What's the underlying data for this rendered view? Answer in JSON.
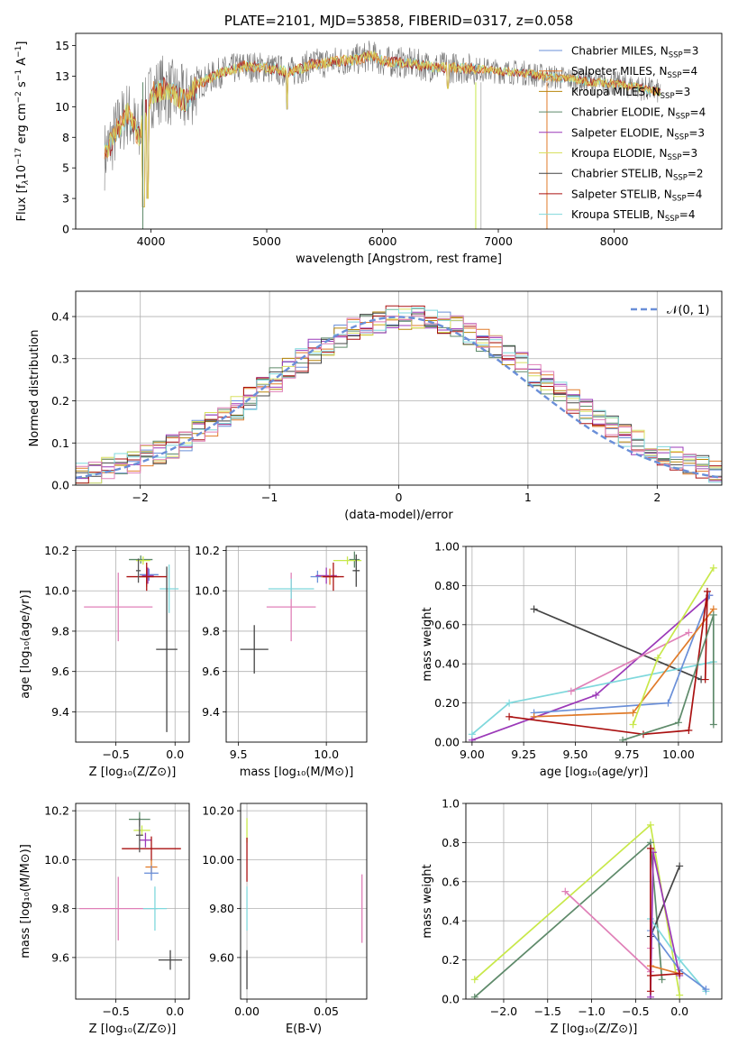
{
  "colors": [
    "#6a8fd8",
    "#e07b2a",
    "#b8860b",
    "#5e8a6a",
    "#9b39b8",
    "#d8e060",
    "#444444",
    "#aa1111",
    "#7fd8dc"
  ],
  "extra_colors": {
    "pink": "#e080b8",
    "lime": "#c8e84a",
    "gray": "#555555"
  },
  "chart_data": [
    {
      "type": "line",
      "title": "PLATE=2101, MJD=53858, FIBERID=0317, z=0.058",
      "xlabel": "wavelength [Angstrom, rest frame]",
      "ylabel_parts": [
        "Flux [f",
        "λ",
        "10",
        "−17",
        " erg cm",
        "−2",
        " s",
        "−1",
        " A",
        "−1",
        "]"
      ],
      "xlim": [
        3350,
        8930
      ],
      "ylim": [
        0,
        16
      ],
      "xticks": [
        4000,
        5000,
        6000,
        7000,
        8000
      ],
      "yticks": [
        0.0,
        2.5,
        5.0,
        7.5,
        10.0,
        12.5,
        15.0
      ],
      "legend_position": "top-right",
      "legend": [
        {
          "text": "Chabrier MILES, N",
          "sub": "SSP",
          "suffix": "=3"
        },
        {
          "text": "Salpeter MILES, N",
          "sub": "SSP",
          "suffix": "=4"
        },
        {
          "text": "Kroupa MILES, N",
          "sub": "SSP",
          "suffix": "=3"
        },
        {
          "text": "Chabrier ELODIE, N",
          "sub": "SSP",
          "suffix": "=4"
        },
        {
          "text": "Salpeter ELODIE, N",
          "sub": "SSP",
          "suffix": "=3"
        },
        {
          "text": "Kroupa ELODIE, N",
          "sub": "SSP",
          "suffix": "=3"
        },
        {
          "text": "Chabrier STELIB, N",
          "sub": "SSP",
          "suffix": "=2"
        },
        {
          "text": "Salpeter STELIB, N",
          "sub": "SSP",
          "suffix": "=4"
        },
        {
          "text": "Kroupa STELIB, N",
          "sub": "SSP",
          "suffix": "=4"
        }
      ],
      "spectrum_shape": [
        [
          3600,
          6.0
        ],
        [
          3700,
          8.0
        ],
        [
          3800,
          9.5
        ],
        [
          3900,
          7.5
        ],
        [
          3950,
          9.5
        ],
        [
          4000,
          11.0
        ],
        [
          4100,
          11.5
        ],
        [
          4300,
          10.5
        ],
        [
          4400,
          11.8
        ],
        [
          4600,
          12.8
        ],
        [
          4800,
          13.3
        ],
        [
          5000,
          13.2
        ],
        [
          5200,
          12.8
        ],
        [
          5400,
          13.5
        ],
        [
          5600,
          13.7
        ],
        [
          5800,
          13.9
        ],
        [
          5900,
          14.2
        ],
        [
          6000,
          13.7
        ],
        [
          6200,
          13.6
        ],
        [
          6400,
          13.3
        ],
        [
          6600,
          13.2
        ],
        [
          6800,
          13.1
        ],
        [
          7000,
          12.9
        ],
        [
          7200,
          12.8
        ],
        [
          7400,
          12.5
        ],
        [
          7600,
          12.3
        ],
        [
          7800,
          12.0
        ],
        [
          8000,
          11.9
        ],
        [
          8200,
          11.6
        ],
        [
          8400,
          11.2
        ]
      ]
    },
    {
      "type": "step",
      "xlabel": "(data-model)/error",
      "ylabel": "Normed distribution",
      "xlim": [
        -2.5,
        2.5
      ],
      "ylim": [
        0,
        0.46
      ],
      "xticks": [
        -2,
        -1,
        0,
        1,
        2
      ],
      "yticks": [
        0.0,
        0.1,
        0.2,
        0.3,
        0.4
      ],
      "legend": "𝒩(0, 1)",
      "legend_position": "top-right",
      "bin_width": 0.1,
      "bin_start": -2.5
    },
    {
      "type": "scatter",
      "xlabel": "Z [log₁₀(Z/Z⊙)]",
      "ylabel": "age  [log₁₀(age/yr)]",
      "xlim": [
        -0.84,
        0.12
      ],
      "ylim": [
        9.25,
        10.22
      ],
      "xticks": [
        -0.5,
        0.0
      ],
      "yticks": [
        9.4,
        9.6,
        9.8,
        10.0,
        10.2
      ],
      "points": [
        {
          "x": -0.48,
          "y": 9.92,
          "xerr": 0.29,
          "yerr": 0.17,
          "c": "pink"
        },
        {
          "x": -0.05,
          "y": 10.01,
          "xerr": 0.08,
          "yerr": 0.12,
          "c": 8
        },
        {
          "x": -0.07,
          "y": 9.71,
          "xerr": 0.09,
          "yerr": 0.41,
          "c": 6
        },
        {
          "x": -0.29,
          "y": 10.155,
          "xerr": 0.1,
          "yerr": 0.02,
          "c": 3
        },
        {
          "x": -0.27,
          "y": 10.15,
          "xerr": 0.06,
          "yerr": 0.02,
          "c": "lime"
        },
        {
          "x": -0.22,
          "y": 10.08,
          "xerr": 0.08,
          "yerr": 0.03,
          "c": 0
        },
        {
          "x": -0.23,
          "y": 10.075,
          "xerr": 0.05,
          "yerr": 0.04,
          "c": 4
        },
        {
          "x": -0.24,
          "y": 10.07,
          "xerr": 0.06,
          "yerr": 0.05,
          "c": 1
        },
        {
          "x": -0.24,
          "y": 10.07,
          "xerr": 0.17,
          "yerr": 0.07,
          "c": 7
        },
        {
          "x": -0.31,
          "y": 10.1,
          "xerr": 0.02,
          "yerr": 0.06,
          "c": "gray"
        }
      ]
    },
    {
      "type": "scatter",
      "xlabel": "mass [log₁₀(M/M⊙)]",
      "ylabel": "",
      "xlim": [
        9.43,
        10.23
      ],
      "ylim": [
        9.25,
        10.22
      ],
      "xticks": [
        9.5,
        10.0
      ],
      "yticks": [
        9.4,
        9.6,
        9.8,
        10.0,
        10.2
      ],
      "points": [
        {
          "x": 9.8,
          "y": 9.92,
          "xerr": 0.14,
          "yerr": 0.17,
          "c": "pink"
        },
        {
          "x": 9.8,
          "y": 10.01,
          "xerr": 0.13,
          "yerr": 0.05,
          "c": 8
        },
        {
          "x": 9.59,
          "y": 9.71,
          "xerr": 0.08,
          "yerr": 0.12,
          "c": 6
        },
        {
          "x": 10.16,
          "y": 10.155,
          "xerr": 0.03,
          "yerr": 0.04,
          "c": 3
        },
        {
          "x": 10.12,
          "y": 10.15,
          "xerr": 0.08,
          "yerr": 0.02,
          "c": "lime"
        },
        {
          "x": 9.95,
          "y": 10.07,
          "xerr": 0.04,
          "yerr": 0.03,
          "c": 0
        },
        {
          "x": 10.0,
          "y": 10.075,
          "xerr": 0.06,
          "yerr": 0.04,
          "c": 4
        },
        {
          "x": 10.02,
          "y": 10.07,
          "xerr": 0.05,
          "yerr": 0.04,
          "c": 1
        },
        {
          "x": 10.04,
          "y": 10.07,
          "xerr": 0.06,
          "yerr": 0.07,
          "c": 7
        },
        {
          "x": 10.17,
          "y": 10.1,
          "xerr": 0.02,
          "yerr": 0.08,
          "c": 6
        }
      ]
    },
    {
      "type": "line",
      "xlabel": "age  [log₁₀(age/yr)]",
      "ylabel": "mass weight",
      "xlim": [
        8.97,
        10.21
      ],
      "ylim": [
        0,
        1.0
      ],
      "xticks": [
        9.0,
        9.25,
        9.5,
        9.75,
        10.0
      ],
      "yticks": [
        0.0,
        0.2,
        0.4,
        0.6,
        0.8,
        1.0
      ],
      "series": [
        {
          "c": 6,
          "x": [
            9.3,
            10.11
          ],
          "y": [
            0.68,
            0.32
          ]
        },
        {
          "c": 4,
          "x": [
            9.0,
            9.6,
            10.15
          ],
          "y": [
            0.01,
            0.24,
            0.75
          ]
        },
        {
          "c": 8,
          "x": [
            9.0,
            9.18,
            10.17
          ],
          "y": [
            0.04,
            0.2,
            0.41
          ]
        },
        {
          "c": "pink",
          "x": [
            9.48,
            10.05
          ],
          "y": [
            0.26,
            0.56
          ]
        },
        {
          "c": 0,
          "x": [
            9.3,
            9.95,
            10.15
          ],
          "y": [
            0.15,
            0.2,
            0.75
          ]
        },
        {
          "c": 1,
          "x": [
            9.3,
            9.78,
            10.17
          ],
          "y": [
            0.13,
            0.15,
            0.68
          ]
        },
        {
          "c": 7,
          "x": [
            9.18,
            9.83,
            10.05,
            10.14,
            10.13
          ],
          "y": [
            0.13,
            0.04,
            0.06,
            0.77,
            0.32
          ]
        },
        {
          "c": 3,
          "x": [
            9.73,
            10.0,
            10.17,
            10.17
          ],
          "y": [
            0.01,
            0.1,
            0.65,
            0.09
          ]
        },
        {
          "c": "lime",
          "x": [
            9.78,
            9.9,
            10.17
          ],
          "y": [
            0.09,
            0.43,
            0.89
          ]
        }
      ]
    },
    {
      "type": "scatter",
      "xlabel": "Z [log₁₀(Z/Z⊙)]",
      "ylabel": "mass [log₁₀(M/M⊙)]",
      "xlim": [
        -0.84,
        0.12
      ],
      "ylim": [
        9.43,
        10.23
      ],
      "xticks": [
        -0.5,
        0.0
      ],
      "yticks": [
        9.6,
        9.8,
        10.0,
        10.2
      ],
      "points": [
        {
          "x": -0.48,
          "y": 9.8,
          "xerr": 0.33,
          "yerr": 0.13,
          "c": "pink"
        },
        {
          "x": -0.17,
          "y": 9.8,
          "xerr": 0.1,
          "yerr": 0.09,
          "c": 8
        },
        {
          "x": -0.04,
          "y": 9.59,
          "xerr": 0.1,
          "yerr": 0.04,
          "c": 6
        },
        {
          "x": -0.3,
          "y": 10.165,
          "xerr": 0.09,
          "yerr": 0.03,
          "c": 3
        },
        {
          "x": -0.28,
          "y": 10.12,
          "xerr": 0.07,
          "yerr": 0.02,
          "c": "lime"
        },
        {
          "x": -0.25,
          "y": 10.08,
          "xerr": 0.05,
          "yerr": 0.03,
          "c": 4
        },
        {
          "x": -0.2,
          "y": 10.045,
          "xerr": 0.25,
          "yerr": 0.05,
          "c": 7
        },
        {
          "x": -0.2,
          "y": 9.97,
          "xerr": 0.05,
          "yerr": 0.03,
          "c": 1
        },
        {
          "x": -0.2,
          "y": 9.945,
          "xerr": 0.06,
          "yerr": 0.03,
          "c": 0
        },
        {
          "x": -0.3,
          "y": 10.1,
          "xerr": 0.03,
          "yerr": 0.07,
          "c": "gray"
        }
      ]
    },
    {
      "type": "scatter",
      "xlabel": "E(B-V)",
      "ylabel": "",
      "xlim": [
        -0.004,
        0.0755
      ],
      "ylim": [
        9.43,
        10.23
      ],
      "xticks": [
        0.0,
        0.05
      ],
      "yticks": [
        9.6,
        9.8,
        10.0,
        10.2
      ],
      "points": [
        {
          "x": 0.0,
          "y": 10.12,
          "xerr": 0,
          "yerr": 0.05,
          "c": "lime"
        },
        {
          "x": 0.0,
          "y": 10.0,
          "xerr": 0,
          "yerr": 0.09,
          "c": 7
        },
        {
          "x": 0.0,
          "y": 9.8,
          "xerr": 0,
          "yerr": 0.09,
          "c": 8
        },
        {
          "x": 0.0,
          "y": 9.55,
          "xerr": 0,
          "yerr": 0.08,
          "c": 6
        },
        {
          "x": 0.0725,
          "y": 9.8,
          "xerr": 0,
          "yerr": 0.14,
          "c": "pink"
        }
      ]
    },
    {
      "type": "line",
      "xlabel": "Z [log₁₀(Z/Z⊙)]",
      "ylabel": "mass weight",
      "xlim": [
        -2.43,
        0.48
      ],
      "ylim": [
        0,
        1.0
      ],
      "xticks": [
        -2.0,
        -1.5,
        -1.0,
        -0.5,
        0.0
      ],
      "yticks": [
        0.0,
        0.2,
        0.4,
        0.6,
        0.8,
        1.0
      ],
      "series": [
        {
          "c": "lime",
          "x": [
            -2.33,
            -0.33,
            0.0
          ],
          "y": [
            0.1,
            0.89,
            0.02
          ]
        },
        {
          "c": 3,
          "x": [
            -2.33,
            -0.33,
            -0.2
          ],
          "y": [
            0.01,
            0.8,
            0.1
          ]
        },
        {
          "c": "pink",
          "x": [
            -1.3,
            -0.33,
            -0.33
          ],
          "y": [
            0.55,
            0.14,
            0.26
          ]
        },
        {
          "c": 6,
          "x": [
            -0.33,
            0.0
          ],
          "y": [
            0.32,
            0.68
          ]
        },
        {
          "c": 8,
          "x": [
            -0.33,
            0.0,
            0.3
          ],
          "y": [
            0.41,
            0.2,
            0.04
          ]
        },
        {
          "c": 0,
          "x": [
            -0.33,
            0.0,
            0.3
          ],
          "y": [
            0.35,
            0.15,
            0.05
          ]
        },
        {
          "c": 4,
          "x": [
            -0.33,
            -0.3,
            0.0
          ],
          "y": [
            0.01,
            0.75,
            0.12
          ]
        },
        {
          "c": 1,
          "x": [
            -0.33,
            0.0
          ],
          "y": [
            0.17,
            0.13
          ]
        },
        {
          "c": 7,
          "x": [
            -0.33,
            -0.33,
            -0.33,
            0.0
          ],
          "y": [
            0.77,
            0.04,
            0.12,
            0.13
          ]
        }
      ]
    }
  ]
}
